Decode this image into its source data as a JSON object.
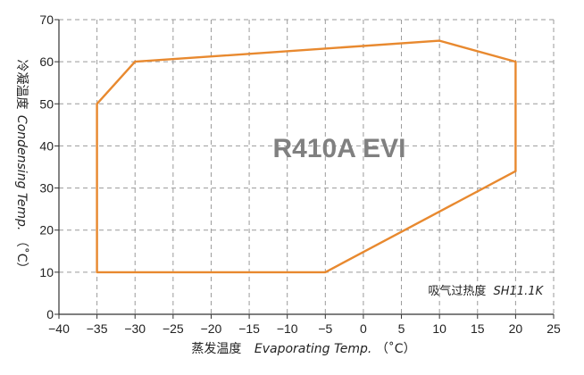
{
  "chart_data": {
    "type": "line",
    "title": "R410A EVI",
    "xlabel_cn": "蒸发温度",
    "xlabel_en": "Evaporating Temp.",
    "xlabel_unit": "（˚C）",
    "ylabel_cn": "冷凝温度",
    "ylabel_en": "Condensing Temp.",
    "ylabel_unit": "（˚C）",
    "annotation_cn": "吸气过热度",
    "annotation_en": "SH11.1K",
    "xlim": [
      -40,
      25
    ],
    "ylim": [
      0,
      70
    ],
    "xticks": [
      -40,
      -35,
      -30,
      -25,
      -20,
      -15,
      -10,
      -5,
      0,
      5,
      10,
      15,
      20,
      25
    ],
    "yticks": [
      0,
      10,
      20,
      30,
      40,
      50,
      60,
      70
    ],
    "grid": true,
    "series": [
      {
        "color": "#E8892F",
        "closed": true,
        "x": [
          -35,
          -30,
          10,
          20,
          20,
          -5,
          -35
        ],
        "y": [
          50,
          60,
          65,
          60,
          34,
          10,
          10
        ]
      }
    ]
  }
}
